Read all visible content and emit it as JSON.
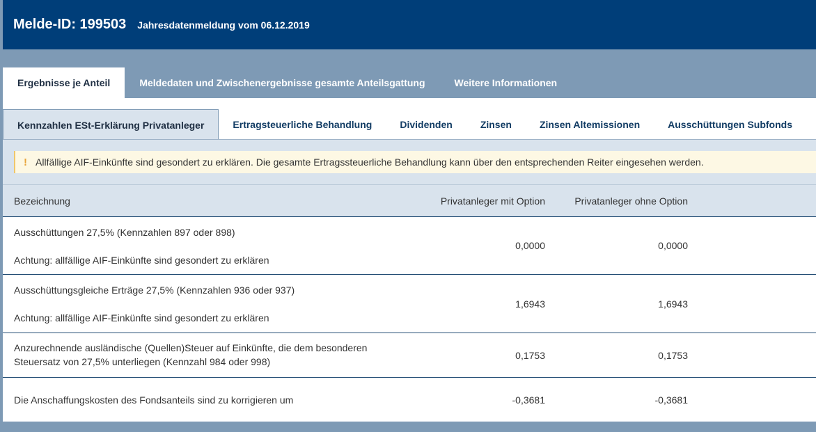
{
  "header": {
    "melde_id": "Melde-ID: 199503",
    "subtitle": "Jahresdatenmeldung vom 06.12.2019"
  },
  "main_tabs": [
    {
      "label": "Ergebnisse je Anteil",
      "active": true
    },
    {
      "label": "Meldedaten und Zwischenergebnisse gesamte Anteilsgattung",
      "active": false
    },
    {
      "label": "Weitere Informationen",
      "active": false
    }
  ],
  "sub_tabs": [
    {
      "label": "Kennzahlen ESt-Erklärung Privatanleger",
      "active": true
    },
    {
      "label": "Ertragsteuerliche Behandlung",
      "active": false
    },
    {
      "label": "Dividenden",
      "active": false
    },
    {
      "label": "Zinsen",
      "active": false
    },
    {
      "label": "Zinsen Altemissionen",
      "active": false
    },
    {
      "label": "Ausschüttungen Subfonds",
      "active": false
    }
  ],
  "alert": {
    "icon": "!",
    "text": "Allfällige AIF-Einkünfte sind gesondert zu erklären. Die gesamte Ertragssteuerliche Behandlung kann über den entsprechenden Reiter eingesehen werden."
  },
  "table": {
    "headers": {
      "label": "Bezeichnung",
      "opt1": "Privatanleger mit Option",
      "opt2": "Privatanleger ohne Option"
    },
    "rows": [
      {
        "label": "Ausschüttungen 27,5% (Kennzahlen 897 oder 898)",
        "note": "Achtung: allfällige AIF-Einkünfte sind gesondert zu erklären",
        "opt1": "0,0000",
        "opt2": "0,0000"
      },
      {
        "label": "Ausschüttungsgleiche Erträge 27,5% (Kennzahlen 936 oder 937)",
        "note": "Achtung: allfällige AIF-Einkünfte sind gesondert zu erklären",
        "opt1": "1,6943",
        "opt2": "1,6943"
      },
      {
        "label": "Anzurechnende ausländische (Quellen)Steuer auf Einkünfte, die dem besonderen Steuersatz von 27,5% unterliegen (Kennzahl 984 oder 998)",
        "opt1": "0,1753",
        "opt2": "0,1753"
      },
      {
        "label": "Die Anschaffungskosten des Fondsanteils sind zu korrigieren um",
        "opt1": "-0,3681",
        "opt2": "-0,3681"
      }
    ]
  },
  "colors": {
    "header_bg": "#003e79",
    "page_bg": "#7e9ab5",
    "table_header_bg": "#d9e3ed",
    "alert_bg": "#fdf8e4",
    "alert_icon": "#e8a43a"
  }
}
